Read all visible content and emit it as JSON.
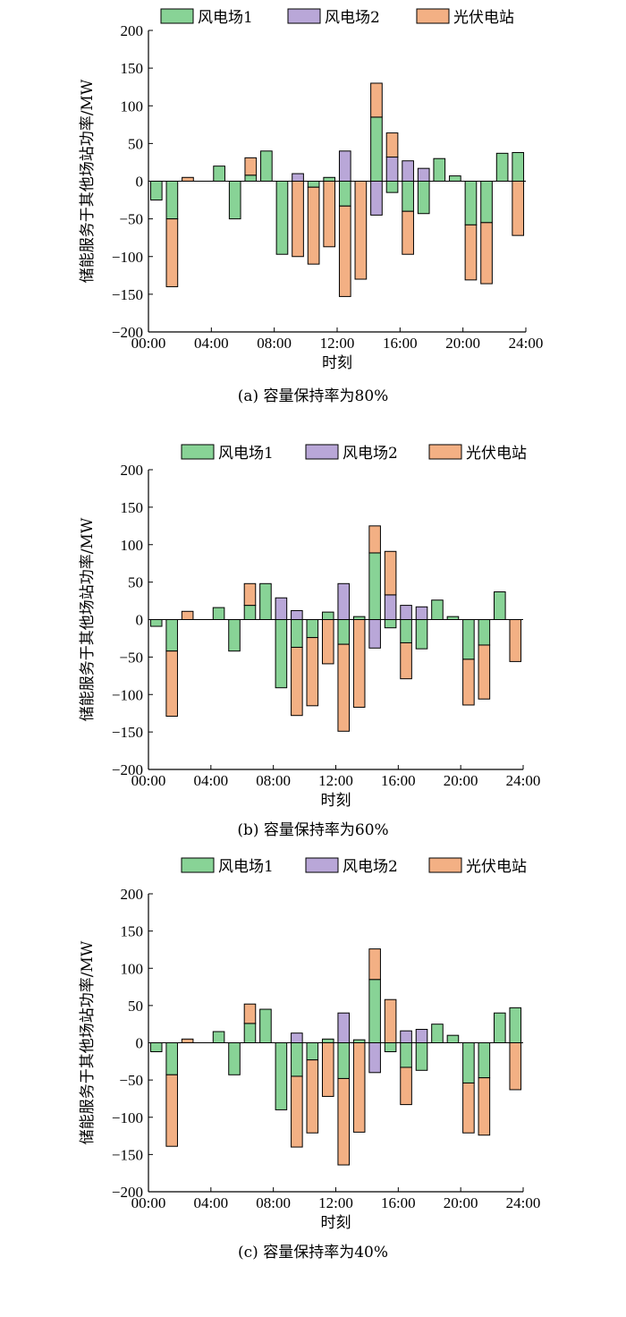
{
  "legend": {
    "s1": "风电场1",
    "s2": "风电场2",
    "s3": "光伏电站"
  },
  "colors": {
    "s1": "#88d396",
    "s2": "#b9a7d8",
    "s3": "#f3b084"
  },
  "chart_data": [
    {
      "type": "bar",
      "stacked": true,
      "caption": "(a) 容量保持率为80%",
      "xlabel": "时刻",
      "ylabel": "储能服务于其他场站功率/MW",
      "ylim": [
        -200,
        200
      ],
      "yticks": [
        "-200",
        "-150",
        "-100",
        "-50",
        "0",
        "50",
        "100",
        "150",
        "200"
      ],
      "xticks": [
        "00:00",
        "04:00",
        "08:00",
        "12:00",
        "16:00",
        "20:00",
        "24:00"
      ],
      "hours": [
        1,
        2,
        3,
        4,
        5,
        6,
        7,
        8,
        9,
        10,
        11,
        12,
        13,
        14,
        15,
        16,
        17,
        18,
        19,
        20,
        21,
        22,
        23,
        24
      ],
      "series": [
        {
          "name": "风电场1",
          "values": [
            -25,
            -50,
            0,
            0,
            20,
            -50,
            8,
            40,
            -97,
            0,
            -8,
            5,
            -33,
            0,
            85,
            -15,
            -40,
            -43,
            30,
            7,
            -58,
            -55,
            37,
            38
          ]
        },
        {
          "name": "风电场2",
          "values": [
            0,
            0,
            0,
            0,
            0,
            0,
            0,
            0,
            0,
            10,
            0,
            0,
            40,
            0,
            -45,
            32,
            27,
            17,
            0,
            0,
            0,
            0,
            0,
            0
          ]
        },
        {
          "name": "光伏电站",
          "values": [
            0,
            -90,
            5,
            0,
            0,
            0,
            23,
            0,
            0,
            -100,
            -102,
            -87,
            -120,
            -130,
            45,
            32,
            -57,
            0,
            0,
            0,
            -73,
            -81,
            0,
            -72
          ]
        }
      ]
    },
    {
      "type": "bar",
      "stacked": true,
      "caption": "(b) 容量保持率为60%",
      "xlabel": "时刻",
      "ylabel": "储能服务于其他场站功率/MW",
      "ylim": [
        -200,
        200
      ],
      "yticks": [
        "-200",
        "-150",
        "-100",
        "-50",
        "0",
        "50",
        "100",
        "150",
        "200"
      ],
      "xticks": [
        "00:00",
        "04:00",
        "08:00",
        "12:00",
        "16:00",
        "20:00",
        "24:00"
      ],
      "hours": [
        1,
        2,
        3,
        4,
        5,
        6,
        7,
        8,
        9,
        10,
        11,
        12,
        13,
        14,
        15,
        16,
        17,
        18,
        19,
        20,
        21,
        22,
        23,
        24
      ],
      "series": [
        {
          "name": "风电场1",
          "values": [
            -9,
            -42,
            0,
            0,
            16,
            -42,
            19,
            48,
            -91,
            -37,
            -24,
            10,
            -33,
            4,
            89,
            -11,
            -31,
            -39,
            26,
            4,
            -53,
            -34,
            37,
            0
          ]
        },
        {
          "name": "风电场2",
          "values": [
            0,
            0,
            0,
            0,
            0,
            0,
            0,
            0,
            29,
            12,
            0,
            0,
            48,
            0,
            -38,
            33,
            19,
            17,
            0,
            0,
            0,
            0,
            0,
            0
          ]
        },
        {
          "name": "光伏电站",
          "values": [
            0,
            -87,
            11,
            0,
            0,
            0,
            29,
            0,
            0,
            -91,
            -91,
            -59,
            -116,
            -117,
            36,
            58,
            -48,
            0,
            0,
            0,
            -61,
            -72,
            0,
            -56
          ]
        }
      ]
    },
    {
      "type": "bar",
      "stacked": true,
      "caption": "(c) 容量保持率为40%",
      "xlabel": "时刻",
      "ylabel": "储能服务于其他场站功率/MW",
      "ylim": [
        -200,
        200
      ],
      "yticks": [
        "-200",
        "-150",
        "-100",
        "-50",
        "0",
        "50",
        "100",
        "150",
        "200"
      ],
      "xticks": [
        "00:00",
        "04:00",
        "08:00",
        "12:00",
        "16:00",
        "20:00",
        "24:00"
      ],
      "hours": [
        1,
        2,
        3,
        4,
        5,
        6,
        7,
        8,
        9,
        10,
        11,
        12,
        13,
        14,
        15,
        16,
        17,
        18,
        19,
        20,
        21,
        22,
        23,
        24
      ],
      "series": [
        {
          "name": "风电场1",
          "values": [
            -12,
            -43,
            0,
            0,
            15,
            -43,
            26,
            45,
            -90,
            -45,
            -23,
            5,
            -48,
            4,
            85,
            -12,
            -33,
            -37,
            25,
            10,
            -54,
            -47,
            40,
            47
          ]
        },
        {
          "name": "风电场2",
          "values": [
            0,
            0,
            0,
            0,
            0,
            0,
            0,
            0,
            0,
            13,
            0,
            0,
            40,
            0,
            -40,
            0,
            16,
            18,
            0,
            0,
            0,
            0,
            0,
            0
          ]
        },
        {
          "name": "光伏电站",
          "values": [
            0,
            -96,
            5,
            0,
            0,
            0,
            26,
            0,
            0,
            -95,
            -98,
            -72,
            -116,
            -120,
            41,
            58,
            -50,
            0,
            0,
            0,
            -67,
            -77,
            0,
            -63
          ]
        }
      ]
    }
  ]
}
